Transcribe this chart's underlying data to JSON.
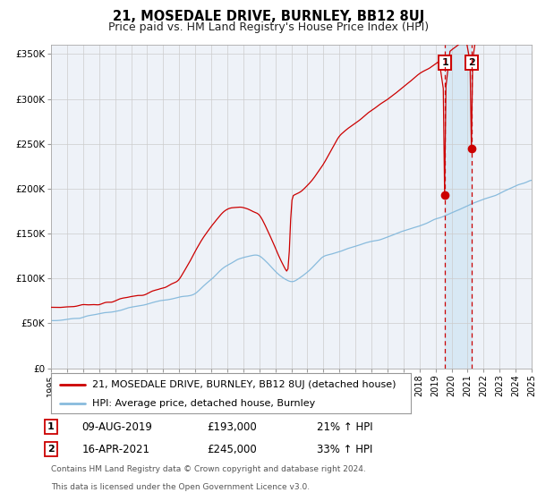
{
  "title": "21, MOSEDALE DRIVE, BURNLEY, BB12 8UJ",
  "subtitle": "Price paid vs. HM Land Registry's House Price Index (HPI)",
  "ylim": [
    0,
    360000
  ],
  "yticks": [
    0,
    50000,
    100000,
    150000,
    200000,
    250000,
    300000,
    350000
  ],
  "ytick_labels": [
    "£0",
    "£50K",
    "£100K",
    "£150K",
    "£200K",
    "£250K",
    "£300K",
    "£350K"
  ],
  "red_color": "#cc0000",
  "blue_color": "#88bbdd",
  "bg_color": "#eef2f8",
  "highlight_bg": "#d8e8f4",
  "grid_color": "#cccccc",
  "sale1_date": 2019.6,
  "sale1_value": 193000,
  "sale2_date": 2021.28,
  "sale2_value": 245000,
  "legend1": "21, MOSEDALE DRIVE, BURNLEY, BB12 8UJ (detached house)",
  "legend2": "HPI: Average price, detached house, Burnley",
  "table_entries": [
    {
      "num": "1",
      "date": "09-AUG-2019",
      "price": "£193,000",
      "hpi": "21% ↑ HPI"
    },
    {
      "num": "2",
      "date": "16-APR-2021",
      "price": "£245,000",
      "hpi": "33% ↑ HPI"
    }
  ],
  "footnote1": "Contains HM Land Registry data © Crown copyright and database right 2024.",
  "footnote2": "This data is licensed under the Open Government Licence v3.0.",
  "title_fontsize": 10.5,
  "subtitle_fontsize": 9,
  "tick_fontsize": 7.5,
  "legend_fontsize": 8
}
